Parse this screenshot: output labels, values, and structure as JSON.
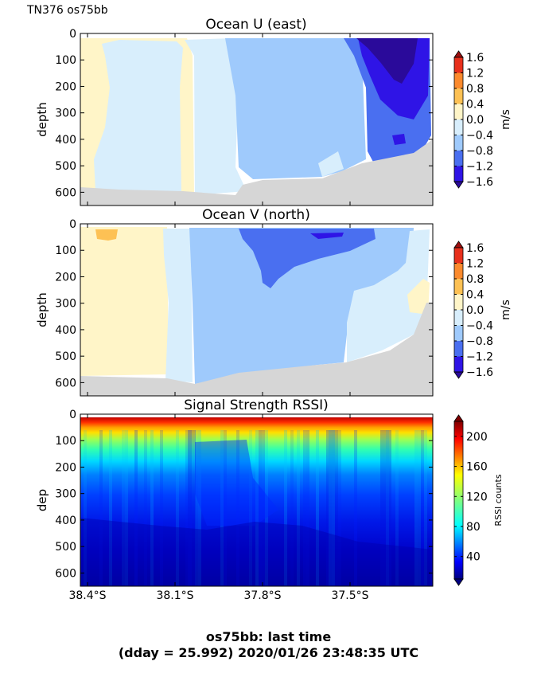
{
  "header": {
    "label": "TN376 os75bb"
  },
  "footer": {
    "line1": "os75bb: last time",
    "line2": "(dday = 25.992) 2020/01/26 23:48:35 UTC"
  },
  "colors": {
    "land_mask": "#d6d6d6",
    "contour_levels": [
      {
        "lo": -1.6,
        "hi": -1.2,
        "color": "#2f14e6"
      },
      {
        "lo": -1.2,
        "hi": -0.8,
        "color": "#4a6ff0"
      },
      {
        "lo": -0.8,
        "hi": -0.4,
        "color": "#9fcafc"
      },
      {
        "lo": -0.4,
        "hi": 0.0,
        "color": "#d8eefc"
      },
      {
        "lo": 0.0,
        "hi": 0.4,
        "color": "#fff5c8"
      },
      {
        "lo": 0.4,
        "hi": 0.8,
        "color": "#fdc154"
      },
      {
        "lo": 0.8,
        "hi": 1.2,
        "color": "#fb8a2d"
      },
      {
        "lo": 1.2,
        "hi": 1.6,
        "color": "#e8301c"
      }
    ],
    "extend_low": "#2a0a9a",
    "extend_high": "#9e1010"
  },
  "chart_data": [
    {
      "type": "heatmap",
      "title": "Ocean U (east)",
      "ylabel": "depth",
      "xlabel": "",
      "ylim": [
        650,
        0
      ],
      "yticks": [
        "0",
        "100",
        "200",
        "300",
        "400",
        "500",
        "600"
      ],
      "xticks": [],
      "colorbar": {
        "label": "m/s",
        "ticks": [
          "1.6",
          "1.2",
          "0.8",
          "0.4",
          "0.0",
          "−0.4",
          "−0.8",
          "−1.2",
          "−1.6"
        ],
        "range": [
          -1.6,
          1.6
        ]
      },
      "regions_latitude_bands": [
        {
          "from": "38.4S",
          "to": "38.26S",
          "range_m_s": "0.0 to 0.4",
          "bottom_depth": 580
        },
        {
          "from": "38.26S",
          "to": "38.06S",
          "range_m_s": "-0.4 to 0.0",
          "bottom_depth": 600
        },
        {
          "from": "38.06S",
          "to": "38.01S",
          "range_m_s": "0.0 to 0.4",
          "bottom_depth": 600
        },
        {
          "from": "38.01S",
          "to": "37.94S",
          "range_m_s": "-0.4 to 0.0",
          "bottom_depth": 610
        },
        {
          "from": "37.94S",
          "to": "37.62S",
          "range_m_s": "-0.8 to -0.4",
          "bottom_depth": 560
        },
        {
          "from": "37.62S",
          "to": "37.41S",
          "range_m_s": "-1.2 to -0.8",
          "bottom_depth": 470
        },
        {
          "from": "37.35S",
          "to": "37.18S",
          "range_m_s": "-1.6 to -1.2",
          "depths": [
            0,
            260
          ]
        },
        {
          "from": "37.29S",
          "to": "37.20S",
          "range_m_s": "< -1.6",
          "depths": [
            0,
            180
          ]
        }
      ]
    },
    {
      "type": "heatmap",
      "title": "Ocean V (north)",
      "ylabel": "depth",
      "xlabel": "",
      "ylim": [
        650,
        0
      ],
      "yticks": [
        "0",
        "100",
        "200",
        "300",
        "400",
        "500",
        "600"
      ],
      "xticks": [],
      "colorbar": {
        "label": "m/s",
        "ticks": [
          "1.6",
          "1.2",
          "0.8",
          "0.4",
          "0.0",
          "−0.4",
          "−0.8",
          "−1.2",
          "−1.6"
        ],
        "range": [
          -1.6,
          1.6
        ]
      },
      "regions_latitude_bands": [
        {
          "from": "38.4S",
          "to": "38.14S",
          "range_m_s": "0.0 to 0.4",
          "bottom_depth": 590
        },
        {
          "from": "38.38S",
          "to": "38.34S",
          "range_m_s": "0.4 to 0.8",
          "depths": [
            20,
            60
          ]
        },
        {
          "from": "38.14S",
          "to": "38.06S",
          "range_m_s": "-0.4 to 0.0",
          "bottom_depth": 600
        },
        {
          "from": "38.06S",
          "to": "37.26S",
          "range_m_s": "-0.8 to -0.4",
          "bottom_depth": 530
        },
        {
          "from": "37.86S",
          "to": "37.61S",
          "range_m_s": "-1.2 to -0.8",
          "depths": [
            0,
            230
          ]
        },
        {
          "from": "37.78S",
          "to": "37.69S",
          "range_m_s": "-1.6 to -1.2",
          "depths": [
            10,
            60
          ]
        },
        {
          "from": "37.57S",
          "to": "37.23S",
          "range_m_s": "-0.4 to 0.0",
          "depths": [
            230,
            520
          ]
        },
        {
          "from": "37.21S",
          "to": "37.17S",
          "range_m_s": "0.0 to 0.4",
          "depths": [
            240,
            400
          ]
        }
      ]
    },
    {
      "type": "heatmap",
      "title": "Signal Strength RSSI)",
      "ylabel": "dep",
      "xlabel": "",
      "ylim": [
        650,
        0
      ],
      "yticks": [
        "0",
        "100",
        "200",
        "300",
        "400",
        "500",
        "600"
      ],
      "xticks": [
        "38.4°S",
        "38.1°S",
        "37.8°S",
        "37.5°S"
      ],
      "colorbar": {
        "label": "RSSI counts",
        "ticks": [
          "200",
          "160",
          "120",
          "80",
          "40"
        ],
        "range": [
          10,
          220
        ]
      },
      "depth_profile_rssi": [
        {
          "depth": 20,
          "value": 205
        },
        {
          "depth": 50,
          "value": 165
        },
        {
          "depth": 100,
          "value": 125
        },
        {
          "depth": 170,
          "value": 105
        },
        {
          "depth": 250,
          "value": 82
        },
        {
          "depth": 320,
          "value": 62
        },
        {
          "depth": 420,
          "value": 48
        },
        {
          "depth": 520,
          "value": 38
        },
        {
          "depth": 620,
          "value": 22
        }
      ]
    }
  ]
}
